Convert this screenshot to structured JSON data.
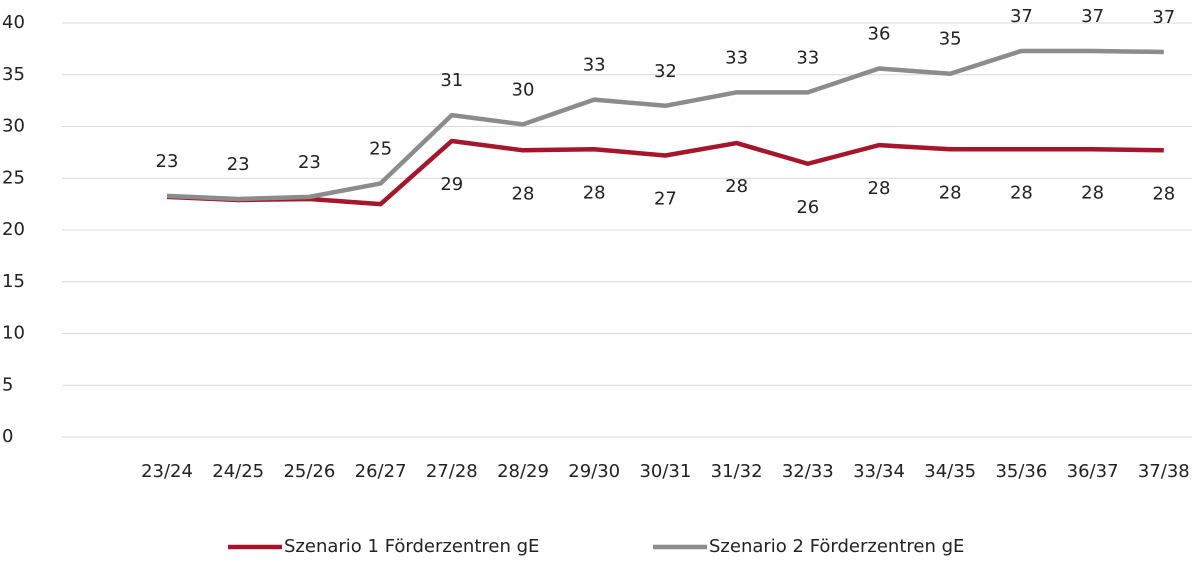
{
  "chart_data": {
    "type": "line",
    "categories": [
      "23/24",
      "24/25",
      "25/26",
      "26/27",
      "27/28",
      "28/29",
      "29/30",
      "30/31",
      "31/32",
      "32/33",
      "33/34",
      "34/35",
      "35/36",
      "36/37",
      "37/38"
    ],
    "series": [
      {
        "name": "Szenario 1 Förderzentren gE",
        "color": "#a6162a",
        "values": [
          23.2,
          22.9,
          23.0,
          22.5,
          28.6,
          27.7,
          27.8,
          27.2,
          28.4,
          26.4,
          28.2,
          27.8,
          27.8,
          27.8,
          27.7
        ],
        "value_labels": [
          null,
          null,
          null,
          null,
          "29",
          "28",
          "28",
          "27",
          "28",
          "26",
          "28",
          "28",
          "28",
          "28",
          "28"
        ]
      },
      {
        "name": "Szenario 2 Förderzentren gE",
        "color": "#8c8c8c",
        "values": [
          23.3,
          23.0,
          23.2,
          24.5,
          31.1,
          30.2,
          32.6,
          32.0,
          33.3,
          33.3,
          35.6,
          35.1,
          37.3,
          37.3,
          37.2
        ],
        "value_labels": [
          "23",
          "23",
          "23",
          "25",
          "31",
          "30",
          "33",
          "32",
          "33",
          "33",
          "36",
          "35",
          "37",
          "37",
          "37"
        ]
      }
    ],
    "ylim": [
      0,
      40
    ],
    "yticks": [
      0,
      5,
      10,
      15,
      20,
      25,
      30,
      35,
      40
    ],
    "grid": true,
    "legend": "bottom"
  }
}
